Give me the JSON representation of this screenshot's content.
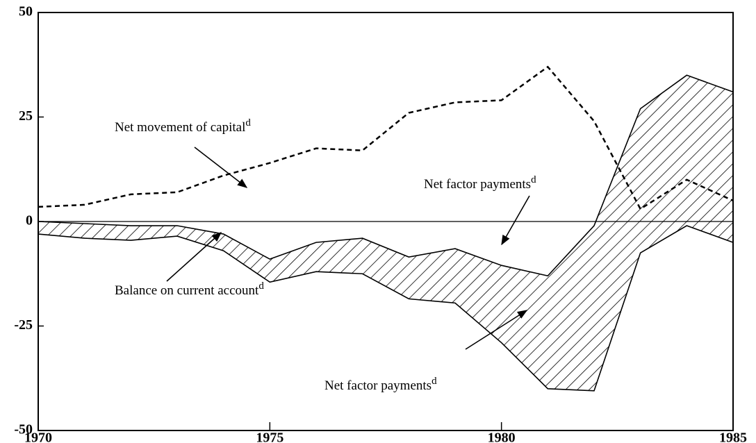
{
  "chart_data": {
    "type": "line",
    "x": [
      1970,
      1971,
      1972,
      1973,
      1974,
      1975,
      1976,
      1977,
      1978,
      1979,
      1980,
      1981,
      1982,
      1983,
      1984,
      1985
    ],
    "series": [
      {
        "name": "Net movement of capital",
        "dashed": true,
        "values": [
          3.5,
          4,
          6.5,
          7,
          11,
          14,
          17.5,
          17,
          26,
          28.5,
          29,
          37,
          24,
          3,
          10,
          5
        ]
      },
      {
        "name": "Balance on current account",
        "values": [
          -3,
          -4,
          -4.5,
          -3.5,
          -7,
          -14.5,
          -12,
          -12.5,
          -18.5,
          -19.5,
          -29,
          -40,
          -40.5,
          -7.5,
          -1,
          -5
        ]
      },
      {
        "values": [
          0,
          -0.5,
          -1,
          -1,
          -3,
          -9,
          -5,
          -4,
          -8.5,
          -6.5,
          -10.5,
          -13,
          -1,
          27,
          35,
          31
        ]
      }
    ],
    "hatched_between": [
      1,
      2
    ],
    "annotations": [
      {
        "text": "Net movement of capital",
        "sup": "d"
      },
      {
        "text": "Net factor payments",
        "sup": "d"
      },
      {
        "text": "Balance on current account",
        "sup": "d"
      },
      {
        "text": "Net factor payments",
        "sup": "d"
      }
    ],
    "xlim": [
      1970,
      1985
    ],
    "xticks": [
      1970,
      1975,
      1980,
      1985
    ],
    "ylim": [
      -50,
      50
    ],
    "yticks": [
      -50,
      -25,
      0,
      25,
      50
    ],
    "zero_line": true
  }
}
